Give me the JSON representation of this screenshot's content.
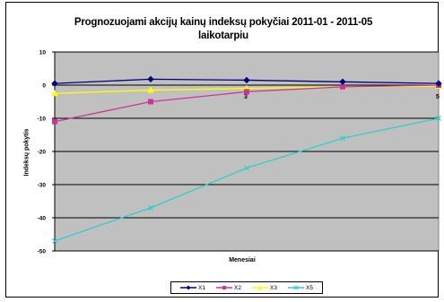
{
  "chart_data": {
    "type": "line",
    "title": "Prognozuojami akcijų kainų indeksų pokyčiai 2011-01 - 2011-05\nlaikotarpiu",
    "xlabel": "Menesiai",
    "ylabel": "Indeksų pokytis",
    "ylim": [
      -50,
      10
    ],
    "yticks": [
      10,
      0,
      -10,
      -20,
      -30,
      -40,
      -50
    ],
    "x": [
      1,
      2,
      3,
      4,
      5
    ],
    "xticks_shown": [
      "3",
      "5"
    ],
    "grid": true,
    "plot_background": "#c0c0c0",
    "legend_position": "bottom",
    "series": [
      {
        "name": "X1",
        "color": "#00007f",
        "marker": "diamond",
        "values": [
          0.5,
          1.8,
          1.5,
          1.0,
          0.5
        ]
      },
      {
        "name": "X2",
        "color": "#cc3399",
        "marker": "square",
        "values": [
          -11,
          -5,
          -2,
          -0.5,
          0
        ]
      },
      {
        "name": "X3",
        "color": "#ffff00",
        "marker": "triangle",
        "values": [
          -2.5,
          -1.5,
          -1,
          -0.5,
          -0.3
        ]
      },
      {
        "name": "X5",
        "color": "#33cccc",
        "marker": "x",
        "values": [
          -47,
          -37,
          -25,
          -16,
          -10
        ]
      }
    ]
  }
}
